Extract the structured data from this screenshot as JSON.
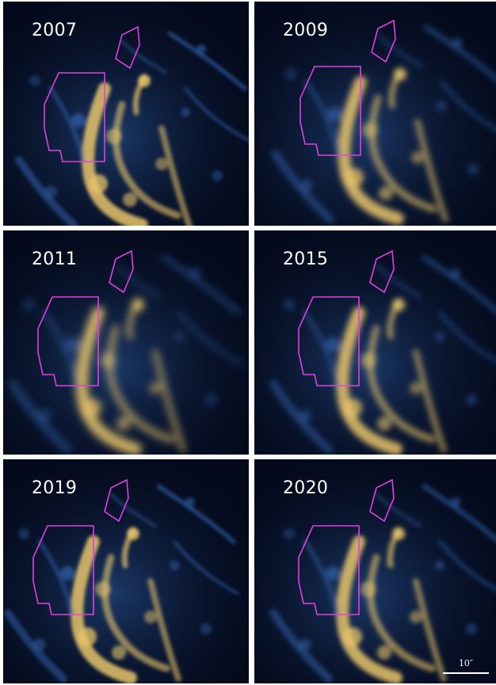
{
  "panels": [
    {
      "year": "2007",
      "blur": 2.2
    },
    {
      "year": "2009",
      "blur": 3.6
    },
    {
      "year": "2011",
      "blur": 5.0
    },
    {
      "year": "2015",
      "blur": 3.6
    },
    {
      "year": "2019",
      "blur": 2.2
    },
    {
      "year": "2020",
      "blur": 3.0
    }
  ],
  "scale_bar": {
    "label": "10″"
  },
  "colors": {
    "background": "#040a1c",
    "emission_dim": "#2f5fa8",
    "emission_bright": "#e8c46a",
    "region_outline": "#e040e0"
  }
}
